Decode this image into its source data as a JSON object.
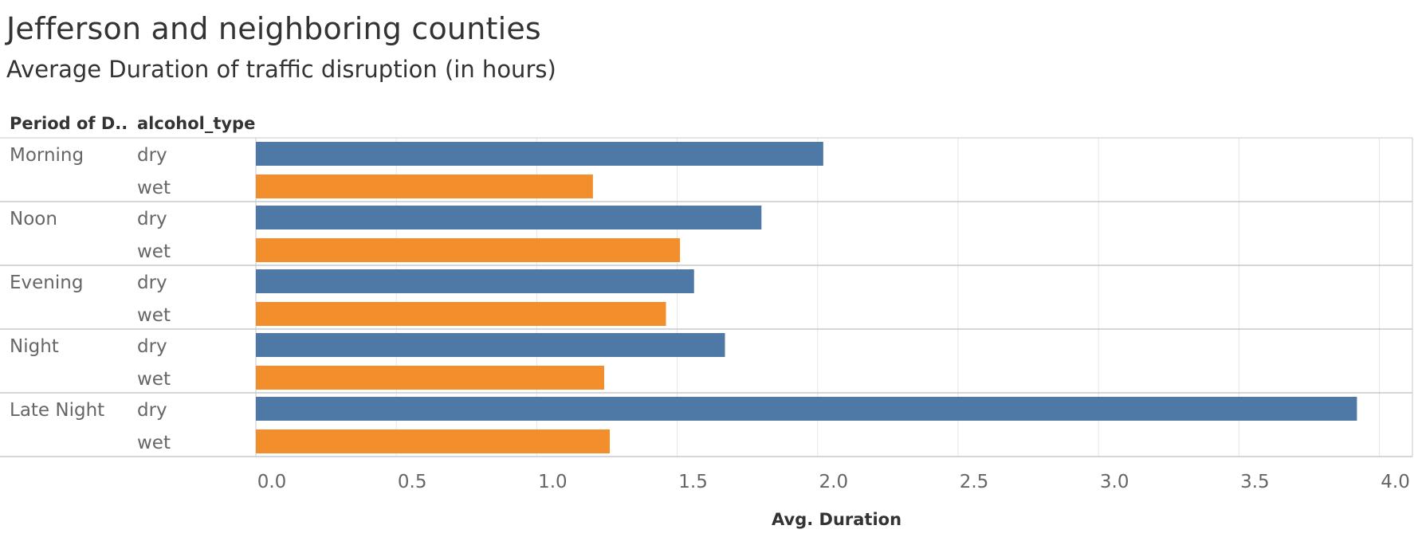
{
  "title": "Jefferson and neighboring counties",
  "subtitle": "Average Duration of traffic disruption (in hours)",
  "headers": {
    "period": "Period of D..",
    "alcohol": "alcohol_type"
  },
  "colors": {
    "dry": "#4e79a7",
    "wet": "#f28e2b",
    "grid": "#e6e6e6",
    "divider": "#c8c8c8",
    "text": "#333333",
    "muted": "#666666"
  },
  "chart_data": {
    "type": "bar",
    "orientation": "horizontal",
    "title": "Jefferson and neighboring counties",
    "subtitle": "Average Duration of traffic disruption (in hours)",
    "xlabel": "Avg. Duration",
    "xlim": [
      0,
      4.1
    ],
    "xticks": [
      "0.0",
      "0.5",
      "1.0",
      "1.5",
      "2.0",
      "2.5",
      "3.0",
      "3.5",
      "4.0"
    ],
    "groups": [
      {
        "period": "Morning",
        "bars": [
          {
            "type": "dry",
            "value": 2.02
          },
          {
            "type": "wet",
            "value": 1.2
          }
        ]
      },
      {
        "period": "Noon",
        "bars": [
          {
            "type": "dry",
            "value": 1.8
          },
          {
            "type": "wet",
            "value": 1.51
          }
        ]
      },
      {
        "period": "Evening",
        "bars": [
          {
            "type": "dry",
            "value": 1.56
          },
          {
            "type": "wet",
            "value": 1.46
          }
        ]
      },
      {
        "period": "Night",
        "bars": [
          {
            "type": "dry",
            "value": 1.67
          },
          {
            "type": "wet",
            "value": 1.24
          }
        ]
      },
      {
        "period": "Late Night",
        "bars": [
          {
            "type": "dry",
            "value": 3.92
          },
          {
            "type": "wet",
            "value": 1.26
          }
        ]
      }
    ]
  }
}
